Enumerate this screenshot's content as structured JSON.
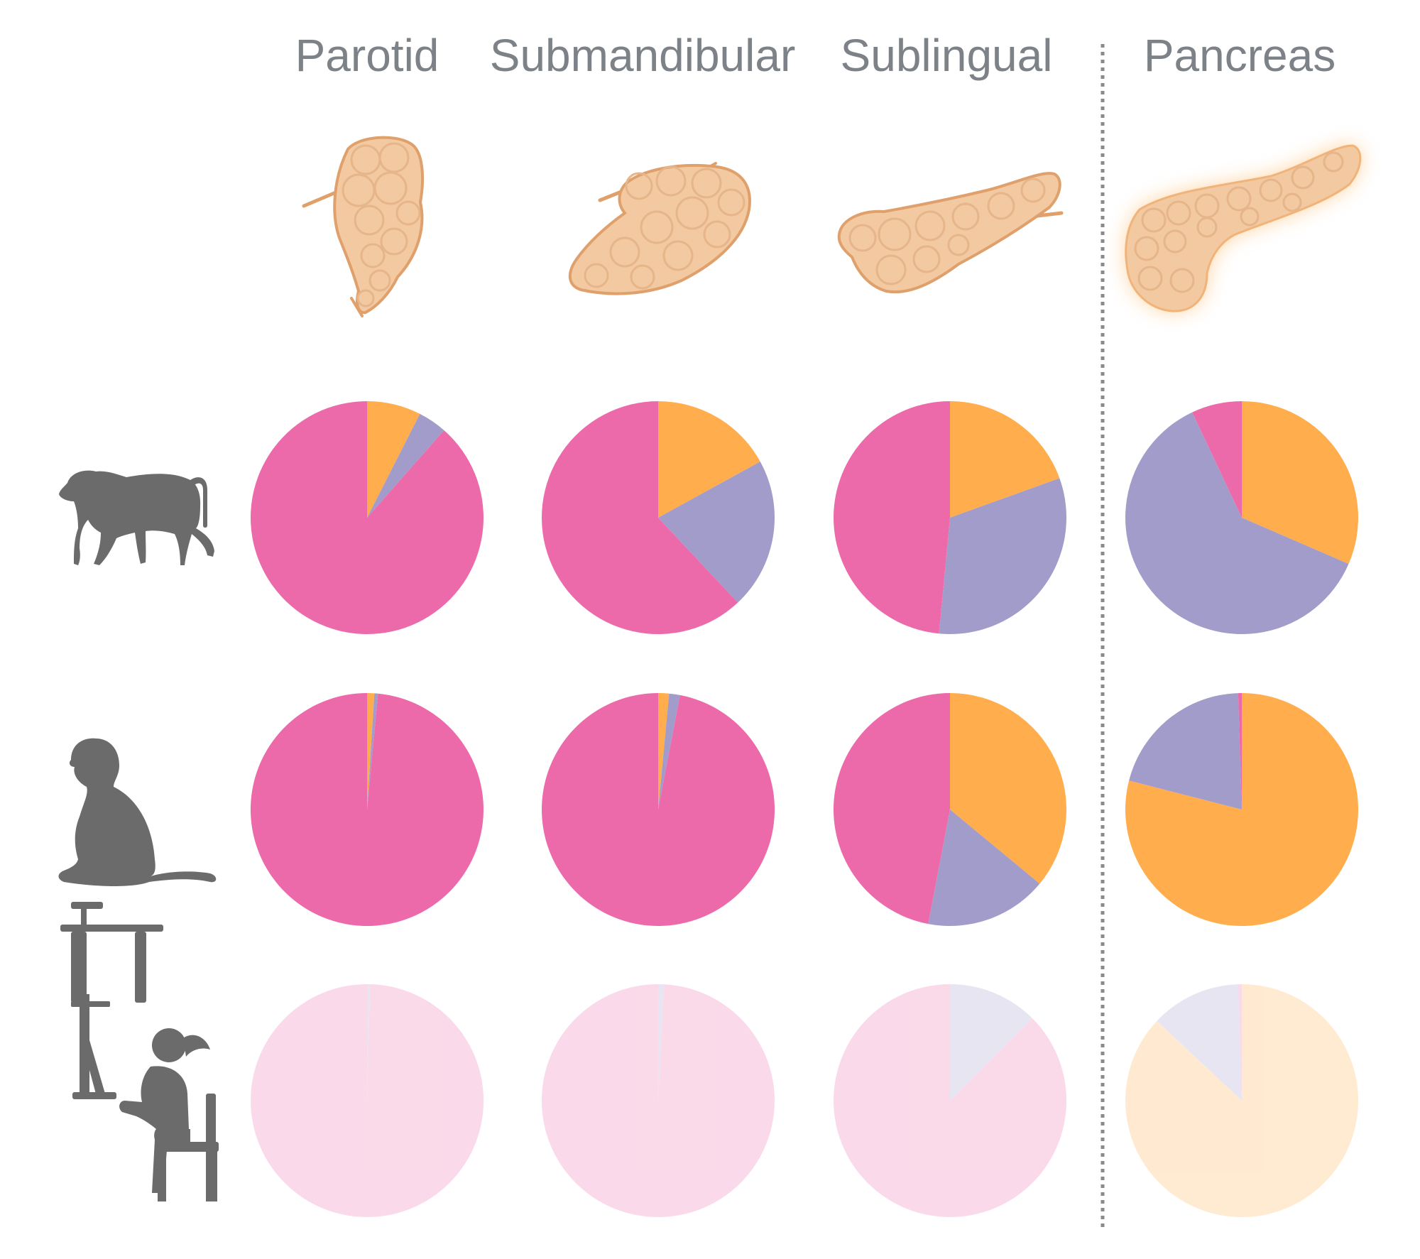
{
  "title": "",
  "columns": [
    {
      "id": "parotid",
      "label": "Parotid"
    },
    {
      "id": "submandibular",
      "label": "Submandibular"
    },
    {
      "id": "sublingual",
      "label": "Sublingual"
    },
    {
      "id": "pancreas",
      "label": "Pancreas"
    }
  ],
  "rows": [
    {
      "id": "baboon",
      "icon": "walking-primate-icon"
    },
    {
      "id": "macaque",
      "icon": "sitting-monkey-icon"
    },
    {
      "id": "human",
      "icon": "person-at-desk-icon"
    }
  ],
  "colors": {
    "label": "#7c8287",
    "icon": "#6b6b6b",
    "gland": "#f2c9a1",
    "gland_stroke": "#e0a06c",
    "divider": "#8a8a8a",
    "orange": "#ffad4d",
    "purple": "#a19cc9",
    "pink": "#ed6aaa"
  },
  "chart_data": {
    "type": "pie",
    "slice_order": "clockwise from 12 o'clock: orange, purple, pink",
    "series_colors": [
      "#ffad4d",
      "#a19cc9",
      "#ed6aaa"
    ],
    "pies": [
      {
        "row": "baboon",
        "column": "Parotid",
        "values": [
          7.5,
          4,
          88.5
        ],
        "faded": false
      },
      {
        "row": "baboon",
        "column": "Submandibular",
        "values": [
          17,
          21,
          62
        ],
        "faded": false
      },
      {
        "row": "baboon",
        "column": "Sublingual",
        "values": [
          19.5,
          32,
          48.5
        ],
        "faded": false
      },
      {
        "row": "baboon",
        "column": "Pancreas",
        "values": [
          31.5,
          61.5,
          7
        ],
        "faded": false
      },
      {
        "row": "macaque",
        "column": "Parotid",
        "values": [
          1,
          0.5,
          98.5
        ],
        "faded": false
      },
      {
        "row": "macaque",
        "column": "Submandibular",
        "values": [
          1.5,
          1.5,
          97
        ],
        "faded": false
      },
      {
        "row": "macaque",
        "column": "Sublingual",
        "values": [
          36,
          17,
          47
        ],
        "faded": false
      },
      {
        "row": "macaque",
        "column": "Pancreas",
        "values": [
          79,
          20.5,
          0.5
        ],
        "faded": false
      },
      {
        "row": "human",
        "column": "Parotid",
        "values": [
          0,
          0.4,
          99.6
        ],
        "faded": true
      },
      {
        "row": "human",
        "column": "Submandibular",
        "values": [
          0,
          0.8,
          99.2
        ],
        "faded": true
      },
      {
        "row": "human",
        "column": "Sublingual",
        "values": [
          0,
          12.5,
          87.5
        ],
        "faded": true
      },
      {
        "row": "human",
        "column": "Pancreas",
        "values": [
          87,
          12.5,
          0.5
        ],
        "faded": true
      }
    ]
  }
}
